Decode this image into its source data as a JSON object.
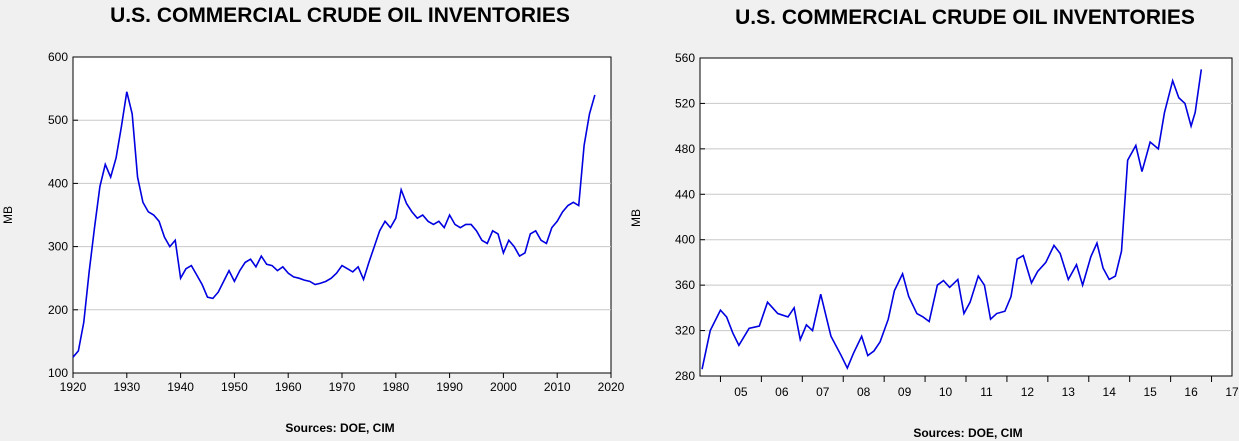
{
  "chart_data": [
    {
      "type": "line",
      "title": "U.S. COMMERCIAL CRUDE OIL INVENTORIES",
      "xlabel": "",
      "ylabel": "MB",
      "source": "Sources:  DOE, CIM",
      "xlim": [
        1920,
        2020
      ],
      "ylim": [
        100,
        600
      ],
      "x_ticks": [
        "1920",
        "1930",
        "1940",
        "1950",
        "1960",
        "1970",
        "1980",
        "1990",
        "2000",
        "2010",
        "2020"
      ],
      "y_ticks": [
        "100",
        "200",
        "300",
        "400",
        "500",
        "600"
      ],
      "grid": true,
      "line_color": "#0000e0",
      "series": [
        {
          "x": [
            1920,
            1921,
            1922,
            1923,
            1924,
            1925,
            1926,
            1927,
            1928,
            1929,
            1930,
            1931,
            1932,
            1933,
            1934,
            1935,
            1936,
            1937,
            1938,
            1939,
            1940,
            1941,
            1942,
            1943,
            1944,
            1945,
            1946,
            1947,
            1948,
            1949,
            1950,
            1951,
            1952,
            1953,
            1954,
            1955,
            1956,
            1957,
            1958,
            1959,
            1960,
            1961,
            1962,
            1963,
            1964,
            1965,
            1966,
            1967,
            1968,
            1969,
            1970,
            1971,
            1972,
            1973,
            1974,
            1975,
            1976,
            1977,
            1978,
            1979,
            1980,
            1981,
            1982,
            1983,
            1984,
            1985,
            1986,
            1987,
            1988,
            1989,
            1990,
            1991,
            1992,
            1993,
            1994,
            1995,
            1996,
            1997,
            1998,
            1999,
            2000,
            2001,
            2002,
            2003,
            2004,
            2005,
            2006,
            2007,
            2008,
            2009,
            2010,
            2011,
            2012,
            2013,
            2014,
            2015,
            2016,
            2017
          ],
          "y": [
            125,
            135,
            180,
            260,
            330,
            395,
            430,
            410,
            440,
            490,
            545,
            510,
            410,
            370,
            355,
            350,
            340,
            315,
            300,
            310,
            250,
            265,
            270,
            255,
            240,
            220,
            218,
            228,
            245,
            262,
            245,
            262,
            275,
            280,
            268,
            285,
            272,
            270,
            262,
            268,
            258,
            252,
            250,
            247,
            245,
            240,
            242,
            245,
            250,
            258,
            270,
            265,
            260,
            268,
            248,
            275,
            300,
            325,
            340,
            330,
            345,
            390,
            368,
            355,
            345,
            350,
            340,
            335,
            340,
            330,
            350,
            335,
            330,
            335,
            335,
            325,
            310,
            305,
            325,
            320,
            290,
            310,
            300,
            285,
            290,
            320,
            325,
            310,
            305,
            330,
            340,
            355,
            365,
            370,
            365,
            460,
            510,
            540
          ]
        }
      ]
    },
    {
      "type": "line",
      "title": "U.S. COMMERCIAL CRUDE OIL INVENTORIES",
      "xlabel": "",
      "ylabel": "MB",
      "source": "Sources:  DOE, CIM",
      "xlim": [
        2004.5,
        2017.5
      ],
      "ylim": [
        280,
        560
      ],
      "x_ticks": [
        "05",
        "06",
        "07",
        "08",
        "09",
        "10",
        "11",
        "12",
        "13",
        "14",
        "15",
        "16",
        "17"
      ],
      "y_ticks": [
        "280",
        "320",
        "360",
        "400",
        "440",
        "480",
        "520",
        "560"
      ],
      "grid": true,
      "line_color": "#0000e0",
      "series": [
        {
          "x": [
            2004.55,
            2004.75,
            2005.0,
            2005.15,
            2005.3,
            2005.45,
            2005.7,
            2005.95,
            2006.15,
            2006.4,
            2006.65,
            2006.8,
            2006.95,
            2007.1,
            2007.25,
            2007.45,
            2007.7,
            2007.95,
            2008.1,
            2008.25,
            2008.45,
            2008.6,
            2008.75,
            2008.9,
            2009.1,
            2009.25,
            2009.45,
            2009.6,
            2009.8,
            2009.95,
            2010.1,
            2010.3,
            2010.45,
            2010.6,
            2010.8,
            2010.95,
            2011.1,
            2011.3,
            2011.45,
            2011.6,
            2011.75,
            2011.95,
            2012.1,
            2012.25,
            2012.4,
            2012.6,
            2012.75,
            2012.95,
            2013.15,
            2013.3,
            2013.5,
            2013.7,
            2013.85,
            2014.05,
            2014.2,
            2014.35,
            2014.5,
            2014.65,
            2014.8,
            2014.95,
            2015.15,
            2015.3,
            2015.5,
            2015.7,
            2015.85,
            2016.05,
            2016.2,
            2016.35,
            2016.5,
            2016.6,
            2016.75
          ],
          "y": [
            286,
            320,
            338,
            332,
            318,
            307,
            322,
            324,
            345,
            335,
            332,
            340,
            312,
            325,
            320,
            352,
            315,
            298,
            287,
            300,
            315,
            298,
            302,
            310,
            330,
            355,
            370,
            350,
            335,
            332,
            328,
            360,
            364,
            358,
            365,
            335,
            345,
            368,
            360,
            330,
            335,
            337,
            350,
            383,
            386,
            362,
            372,
            380,
            395,
            388,
            365,
            378,
            360,
            385,
            397,
            375,
            365,
            368,
            390,
            470,
            483,
            460,
            486,
            480,
            512,
            540,
            525,
            520,
            500,
            512,
            550
          ]
        }
      ]
    }
  ]
}
